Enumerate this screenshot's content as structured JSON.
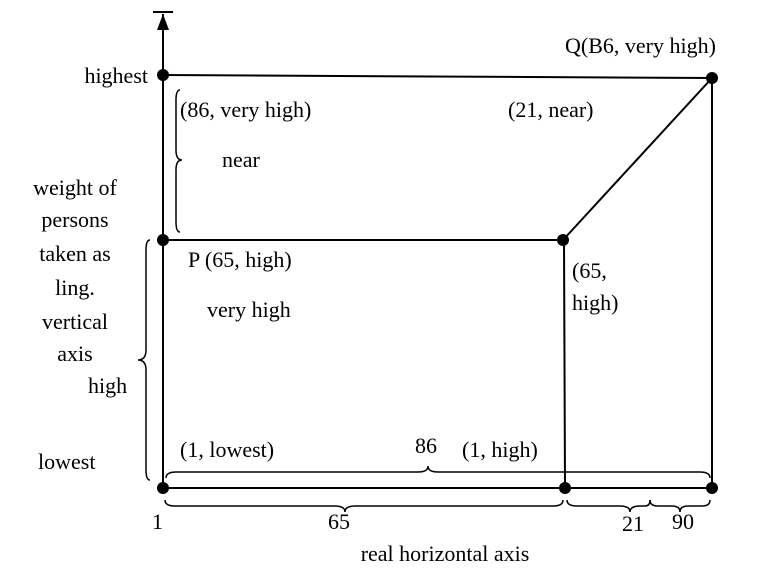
{
  "q_label": "Q(B6, very high)",
  "highest": "highest",
  "top_left_label": "(86, very high)",
  "top_right_label": "(21, near)",
  "near": "near",
  "vertical_axis_label": [
    "weight of",
    "persons",
    "taken as",
    "ling.",
    "vertical",
    "axis"
  ],
  "p_label": "P (65, high)",
  "mid_right_label": [
    "(65,",
    "high)"
  ],
  "very_high": "very high",
  "high": "high",
  "lowest": "lowest",
  "bottom_left_label": "(1, lowest)",
  "brace_86": "86",
  "bottom_right_label": "(1, high)",
  "tick_1": "1",
  "brace_65": "65",
  "brace_21": "21",
  "brace_90": "90",
  "horizontal_axis_label": "real horizontal axis"
}
